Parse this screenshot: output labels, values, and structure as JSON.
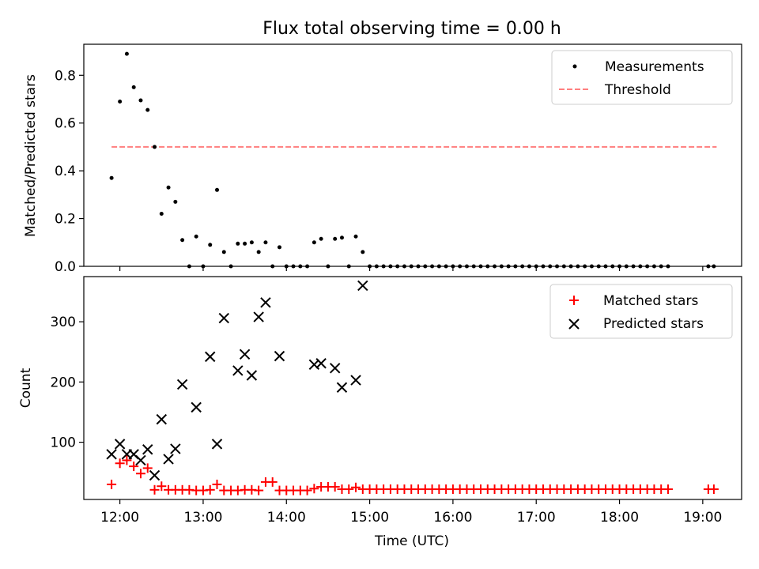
{
  "figure": {
    "title": "Flux total observing time = 0.00 h",
    "xlabel": "Time (UTC)"
  },
  "chart_data": [
    {
      "type": "scatter",
      "panel": "top",
      "ylabel": "Matched/Predicted stars",
      "xlim": [
        "11:34",
        "19:28"
      ],
      "ylim": [
        0,
        0.93
      ],
      "yticks": [
        0.0,
        0.2,
        0.4,
        0.6,
        0.8
      ],
      "ytick_labels": [
        "0.0",
        "0.2",
        "0.4",
        "0.6",
        "0.8"
      ],
      "legend_position": "top-right",
      "grid": false,
      "series": [
        {
          "name": "Measurements",
          "kind": "scatter",
          "marker": "dot",
          "color": "#000000",
          "points": [
            [
              "11:54",
              0.37
            ],
            [
              "12:00",
              0.69
            ],
            [
              "12:05",
              0.89
            ],
            [
              "12:10",
              0.75
            ],
            [
              "12:15",
              0.695
            ],
            [
              "12:20",
              0.655
            ],
            [
              "12:25",
              0.5
            ],
            [
              "12:30",
              0.22
            ],
            [
              "12:35",
              0.33
            ],
            [
              "12:40",
              0.27
            ],
            [
              "12:45",
              0.11
            ],
            [
              "12:50",
              0.0
            ],
            [
              "12:55",
              0.125
            ],
            [
              "13:00",
              0.0
            ],
            [
              "13:05",
              0.09
            ],
            [
              "13:10",
              0.32
            ],
            [
              "13:15",
              0.06
            ],
            [
              "13:20",
              0.0
            ],
            [
              "13:25",
              0.095
            ],
            [
              "13:30",
              0.095
            ],
            [
              "13:35",
              0.1
            ],
            [
              "13:40",
              0.06
            ],
            [
              "13:45",
              0.1
            ],
            [
              "13:50",
              0.0
            ],
            [
              "13:55",
              0.08
            ],
            [
              "14:00",
              0.0
            ],
            [
              "14:05",
              0.0
            ],
            [
              "14:10",
              0.0
            ],
            [
              "14:15",
              0.0
            ],
            [
              "14:20",
              0.1
            ],
            [
              "14:25",
              0.115
            ],
            [
              "14:30",
              0.0
            ],
            [
              "14:35",
              0.115
            ],
            [
              "14:40",
              0.12
            ],
            [
              "14:45",
              0.0
            ],
            [
              "14:50",
              0.125
            ],
            [
              "14:55",
              0.06
            ],
            [
              "15:00",
              0.0
            ],
            [
              "15:05",
              0.0
            ],
            [
              "15:10",
              0.0
            ],
            [
              "15:15",
              0.0
            ],
            [
              "15:20",
              0.0
            ],
            [
              "15:25",
              0.0
            ],
            [
              "15:30",
              0.0
            ],
            [
              "15:35",
              0.0
            ],
            [
              "15:40",
              0.0
            ],
            [
              "15:45",
              0.0
            ],
            [
              "15:50",
              0.0
            ],
            [
              "15:55",
              0.0
            ],
            [
              "16:00",
              0.0
            ],
            [
              "16:05",
              0.0
            ],
            [
              "16:10",
              0.0
            ],
            [
              "16:15",
              0.0
            ],
            [
              "16:20",
              0.0
            ],
            [
              "16:25",
              0.0
            ],
            [
              "16:30",
              0.0
            ],
            [
              "16:35",
              0.0
            ],
            [
              "16:40",
              0.0
            ],
            [
              "16:45",
              0.0
            ],
            [
              "16:50",
              0.0
            ],
            [
              "16:55",
              0.0
            ],
            [
              "17:00",
              0.0
            ],
            [
              "17:05",
              0.0
            ],
            [
              "17:10",
              0.0
            ],
            [
              "17:15",
              0.0
            ],
            [
              "17:20",
              0.0
            ],
            [
              "17:25",
              0.0
            ],
            [
              "17:30",
              0.0
            ],
            [
              "17:35",
              0.0
            ],
            [
              "17:40",
              0.0
            ],
            [
              "17:45",
              0.0
            ],
            [
              "17:50",
              0.0
            ],
            [
              "17:55",
              0.0
            ],
            [
              "18:00",
              0.0
            ],
            [
              "18:05",
              0.0
            ],
            [
              "18:10",
              0.0
            ],
            [
              "18:15",
              0.0
            ],
            [
              "18:20",
              0.0
            ],
            [
              "18:25",
              0.0
            ],
            [
              "18:30",
              0.0
            ],
            [
              "18:35",
              0.0
            ],
            [
              "19:04",
              0.0
            ],
            [
              "19:08",
              0.0
            ]
          ]
        },
        {
          "name": "Threshold",
          "kind": "line",
          "style": "dashed",
          "color": "#ff7f7f",
          "points": [
            [
              "11:54",
              0.5
            ],
            [
              "19:10",
              0.5
            ]
          ]
        }
      ]
    },
    {
      "type": "scatter",
      "panel": "bottom",
      "ylabel": "Count",
      "xlim": [
        "11:34",
        "19:28"
      ],
      "ylim": [
        5,
        375
      ],
      "yticks": [
        100,
        200,
        300
      ],
      "ytick_labels": [
        "100",
        "200",
        "300"
      ],
      "xticks": [
        "12:00",
        "13:00",
        "14:00",
        "15:00",
        "16:00",
        "17:00",
        "18:00",
        "19:00"
      ],
      "legend_position": "top-right",
      "grid": false,
      "series": [
        {
          "name": "Matched stars",
          "kind": "scatter",
          "marker": "plus",
          "color": "#ff0000",
          "points": [
            [
              "11:54",
              30
            ],
            [
              "12:00",
              65
            ],
            [
              "12:05",
              70
            ],
            [
              "12:10",
              60
            ],
            [
              "12:15",
              48
            ],
            [
              "12:20",
              57
            ],
            [
              "12:25",
              21
            ],
            [
              "12:30",
              27
            ],
            [
              "12:35",
              21
            ],
            [
              "12:40",
              21
            ],
            [
              "12:45",
              21
            ],
            [
              "12:50",
              21
            ],
            [
              "12:55",
              20
            ],
            [
              "13:00",
              20
            ],
            [
              "13:05",
              21
            ],
            [
              "13:10",
              30
            ],
            [
              "13:15",
              20
            ],
            [
              "13:20",
              20
            ],
            [
              "13:25",
              20
            ],
            [
              "13:30",
              21
            ],
            [
              "13:35",
              21
            ],
            [
              "13:40",
              20
            ],
            [
              "13:45",
              34
            ],
            [
              "13:50",
              34
            ],
            [
              "13:55",
              20
            ],
            [
              "14:00",
              20
            ],
            [
              "14:05",
              20
            ],
            [
              "14:10",
              20
            ],
            [
              "14:15",
              20
            ],
            [
              "14:20",
              23
            ],
            [
              "14:25",
              26
            ],
            [
              "14:30",
              26
            ],
            [
              "14:35",
              26
            ],
            [
              "14:40",
              22
            ],
            [
              "14:45",
              22
            ],
            [
              "14:50",
              25
            ],
            [
              "14:55",
              22
            ],
            [
              "15:00",
              22
            ],
            [
              "15:05",
              22
            ],
            [
              "15:10",
              22
            ],
            [
              "15:15",
              22
            ],
            [
              "15:20",
              22
            ],
            [
              "15:25",
              22
            ],
            [
              "15:30",
              22
            ],
            [
              "15:35",
              22
            ],
            [
              "15:40",
              22
            ],
            [
              "15:45",
              22
            ],
            [
              "15:50",
              22
            ],
            [
              "15:55",
              22
            ],
            [
              "16:00",
              22
            ],
            [
              "16:05",
              22
            ],
            [
              "16:10",
              22
            ],
            [
              "16:15",
              22
            ],
            [
              "16:20",
              22
            ],
            [
              "16:25",
              22
            ],
            [
              "16:30",
              22
            ],
            [
              "16:35",
              22
            ],
            [
              "16:40",
              22
            ],
            [
              "16:45",
              22
            ],
            [
              "16:50",
              22
            ],
            [
              "16:55",
              22
            ],
            [
              "17:00",
              22
            ],
            [
              "17:05",
              22
            ],
            [
              "17:10",
              22
            ],
            [
              "17:15",
              22
            ],
            [
              "17:20",
              22
            ],
            [
              "17:25",
              22
            ],
            [
              "17:30",
              22
            ],
            [
              "17:35",
              22
            ],
            [
              "17:40",
              22
            ],
            [
              "17:45",
              22
            ],
            [
              "17:50",
              22
            ],
            [
              "17:55",
              22
            ],
            [
              "18:00",
              22
            ],
            [
              "18:05",
              22
            ],
            [
              "18:10",
              22
            ],
            [
              "18:15",
              22
            ],
            [
              "18:20",
              22
            ],
            [
              "18:25",
              22
            ],
            [
              "18:30",
              22
            ],
            [
              "18:35",
              22
            ],
            [
              "19:04",
              22
            ],
            [
              "19:08",
              22
            ]
          ]
        },
        {
          "name": "Predicted stars",
          "kind": "scatter",
          "marker": "x",
          "color": "#000000",
          "points": [
            [
              "11:54",
              80
            ],
            [
              "12:00",
              97
            ],
            [
              "12:05",
              80
            ],
            [
              "12:10",
              80
            ],
            [
              "12:15",
              70
            ],
            [
              "12:20",
              88
            ],
            [
              "12:25",
              45
            ],
            [
              "12:30",
              138
            ],
            [
              "12:35",
              72
            ],
            [
              "12:40",
              89
            ],
            [
              "12:45",
              196
            ],
            [
              "12:55",
              158
            ],
            [
              "13:05",
              242
            ],
            [
              "13:10",
              97
            ],
            [
              "13:15",
              306
            ],
            [
              "13:25",
              219
            ],
            [
              "13:30",
              246
            ],
            [
              "13:35",
              211
            ],
            [
              "13:40",
              308
            ],
            [
              "13:45",
              332
            ],
            [
              "13:55",
              243
            ],
            [
              "14:20",
              229
            ],
            [
              "14:25",
              231
            ],
            [
              "14:35",
              223
            ],
            [
              "14:40",
              191
            ],
            [
              "14:50",
              203
            ],
            [
              "14:55",
              360
            ]
          ]
        }
      ]
    }
  ]
}
